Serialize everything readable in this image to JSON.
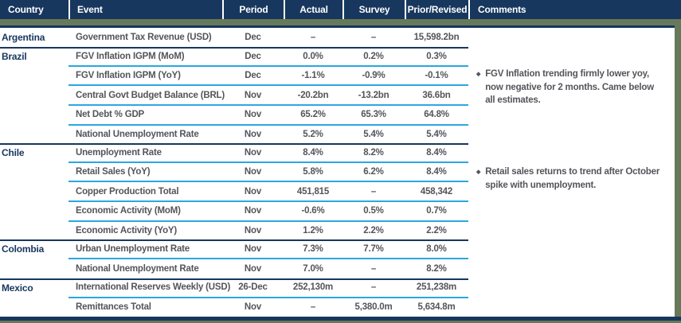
{
  "columns": {
    "country": "Country",
    "event": "Event",
    "period": "Period",
    "actual": "Actual",
    "survey": "Survey",
    "prior": "Prior/Revised",
    "comments": "Comments"
  },
  "icons": {
    "bullet_glyph": "◆"
  },
  "colors": {
    "header_navy": "#17375e",
    "accent_green": "#66795a",
    "row_divider_blue": "#2aa7e0",
    "body_text_gray": "#54555a",
    "country_text_navy": "#17375e"
  },
  "groups": [
    {
      "country": "Argentina",
      "comment": "",
      "rows": [
        {
          "event": "Government Tax Revenue (USD)",
          "period": "Dec",
          "actual": "–",
          "survey": "–",
          "prior": "15,598.2bn"
        }
      ]
    },
    {
      "country": "Brazil",
      "comment": "FGV Inflation trending firmly lower yoy, now negative for 2 months. Came below all estimates.",
      "rows": [
        {
          "event": "FGV Inflation IGPM (MoM)",
          "period": "Dec",
          "actual": "0.0%",
          "survey": "0.2%",
          "prior": "0.3%"
        },
        {
          "event": "FGV Inflation IGPM (YoY)",
          "period": "Dec",
          "actual": "-1.1%",
          "survey": "-0.9%",
          "prior": "-0.1%"
        },
        {
          "event": "Central Govt Budget Balance (BRL)",
          "period": "Nov",
          "actual": "-20.2bn",
          "survey": "-13.2bn",
          "prior": "36.6bn"
        },
        {
          "event": "Net Debt % GDP",
          "period": "Nov",
          "actual": "65.2%",
          "survey": "65.3%",
          "prior": "64.8%"
        },
        {
          "event": "National Unemployment Rate",
          "period": "Nov",
          "actual": "5.2%",
          "survey": "5.4%",
          "prior": "5.4%"
        }
      ]
    },
    {
      "country": "Chile",
      "comment": "Retail sales returns to trend after October spike with unemployment.",
      "rows": [
        {
          "event": "Unemployment Rate",
          "period": "Nov",
          "actual": "8.4%",
          "survey": "8.2%",
          "prior": "8.4%"
        },
        {
          "event": "Retail Sales (YoY)",
          "period": "Nov",
          "actual": "5.8%",
          "survey": "6.2%",
          "prior": "8.4%"
        },
        {
          "event": "Copper Production Total",
          "period": "Nov",
          "actual": "451,815",
          "survey": "–",
          "prior": "458,342"
        },
        {
          "event": "Economic Activity (MoM)",
          "period": "Nov",
          "actual": "-0.6%",
          "survey": "0.5%",
          "prior": "0.7%"
        },
        {
          "event": "Economic Activity (YoY)",
          "period": "Nov",
          "actual": "1.2%",
          "survey": "2.2%",
          "prior": "2.2%"
        }
      ]
    },
    {
      "country": "Colombia",
      "comment": "",
      "rows": [
        {
          "event": "Urban Unemployment Rate",
          "period": "Nov",
          "actual": "7.3%",
          "survey": "7.7%",
          "prior": "8.0%"
        },
        {
          "event": "National Unemployment Rate",
          "period": "Nov",
          "actual": "7.0%",
          "survey": "–",
          "prior": "8.2%"
        }
      ]
    },
    {
      "country": "Mexico",
      "comment": "",
      "rows": [
        {
          "event": "International Reserves Weekly (USD)",
          "period": "26-Dec",
          "actual": "252,130m",
          "survey": "–",
          "prior": "251,238m"
        },
        {
          "event": "Remittances Total",
          "period": "Nov",
          "actual": "–",
          "survey": "5,380.0m",
          "prior": "5,634.8m"
        }
      ]
    }
  ]
}
